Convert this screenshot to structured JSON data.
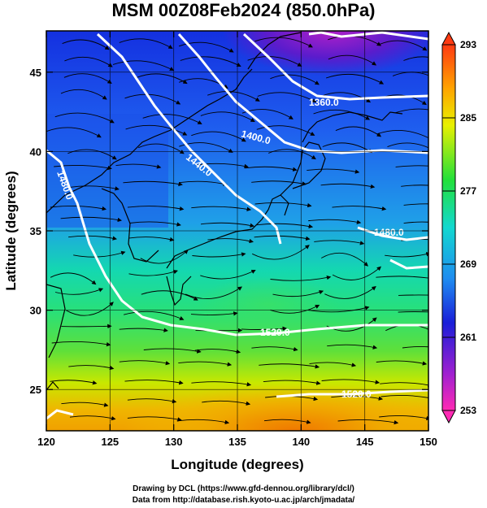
{
  "title": "MSM 00Z08Feb2024 (850.0hPa)",
  "credits": {
    "line1": "Drawing by DCL (https://www.gfd-dennou.org/library/dcl/)",
    "line2": "Data from http://database.rish.kyoto-u.ac.jp/arch/jmadata/"
  },
  "axes": {
    "xlabel": "Longitude (degrees)",
    "ylabel": "Latitude  (degrees)",
    "x_ticks": [
      "120",
      "125",
      "130",
      "135",
      "140",
      "145",
      "150"
    ],
    "y_ticks": [
      "25",
      "30",
      "35",
      "40",
      "45"
    ],
    "xlim": [
      120,
      150
    ],
    "ylim": [
      22.4,
      47.6
    ]
  },
  "colorbar": {
    "labels": [
      "293",
      "285",
      "277",
      "269",
      "261",
      "253"
    ],
    "range": [
      253,
      293
    ],
    "unit_values": [
      293,
      285,
      277,
      269,
      261,
      253
    ]
  },
  "contours": [
    {
      "label": "1360.0"
    },
    {
      "label": "1400.0"
    },
    {
      "label": "1440.0"
    },
    {
      "label": "1480.0"
    },
    {
      "label": "1480.0"
    },
    {
      "label": "1520.0"
    },
    {
      "label": "1520.0"
    }
  ],
  "colors": {
    "contour": "#ffffff",
    "coast": "#000000",
    "streamline": "#000000"
  }
}
